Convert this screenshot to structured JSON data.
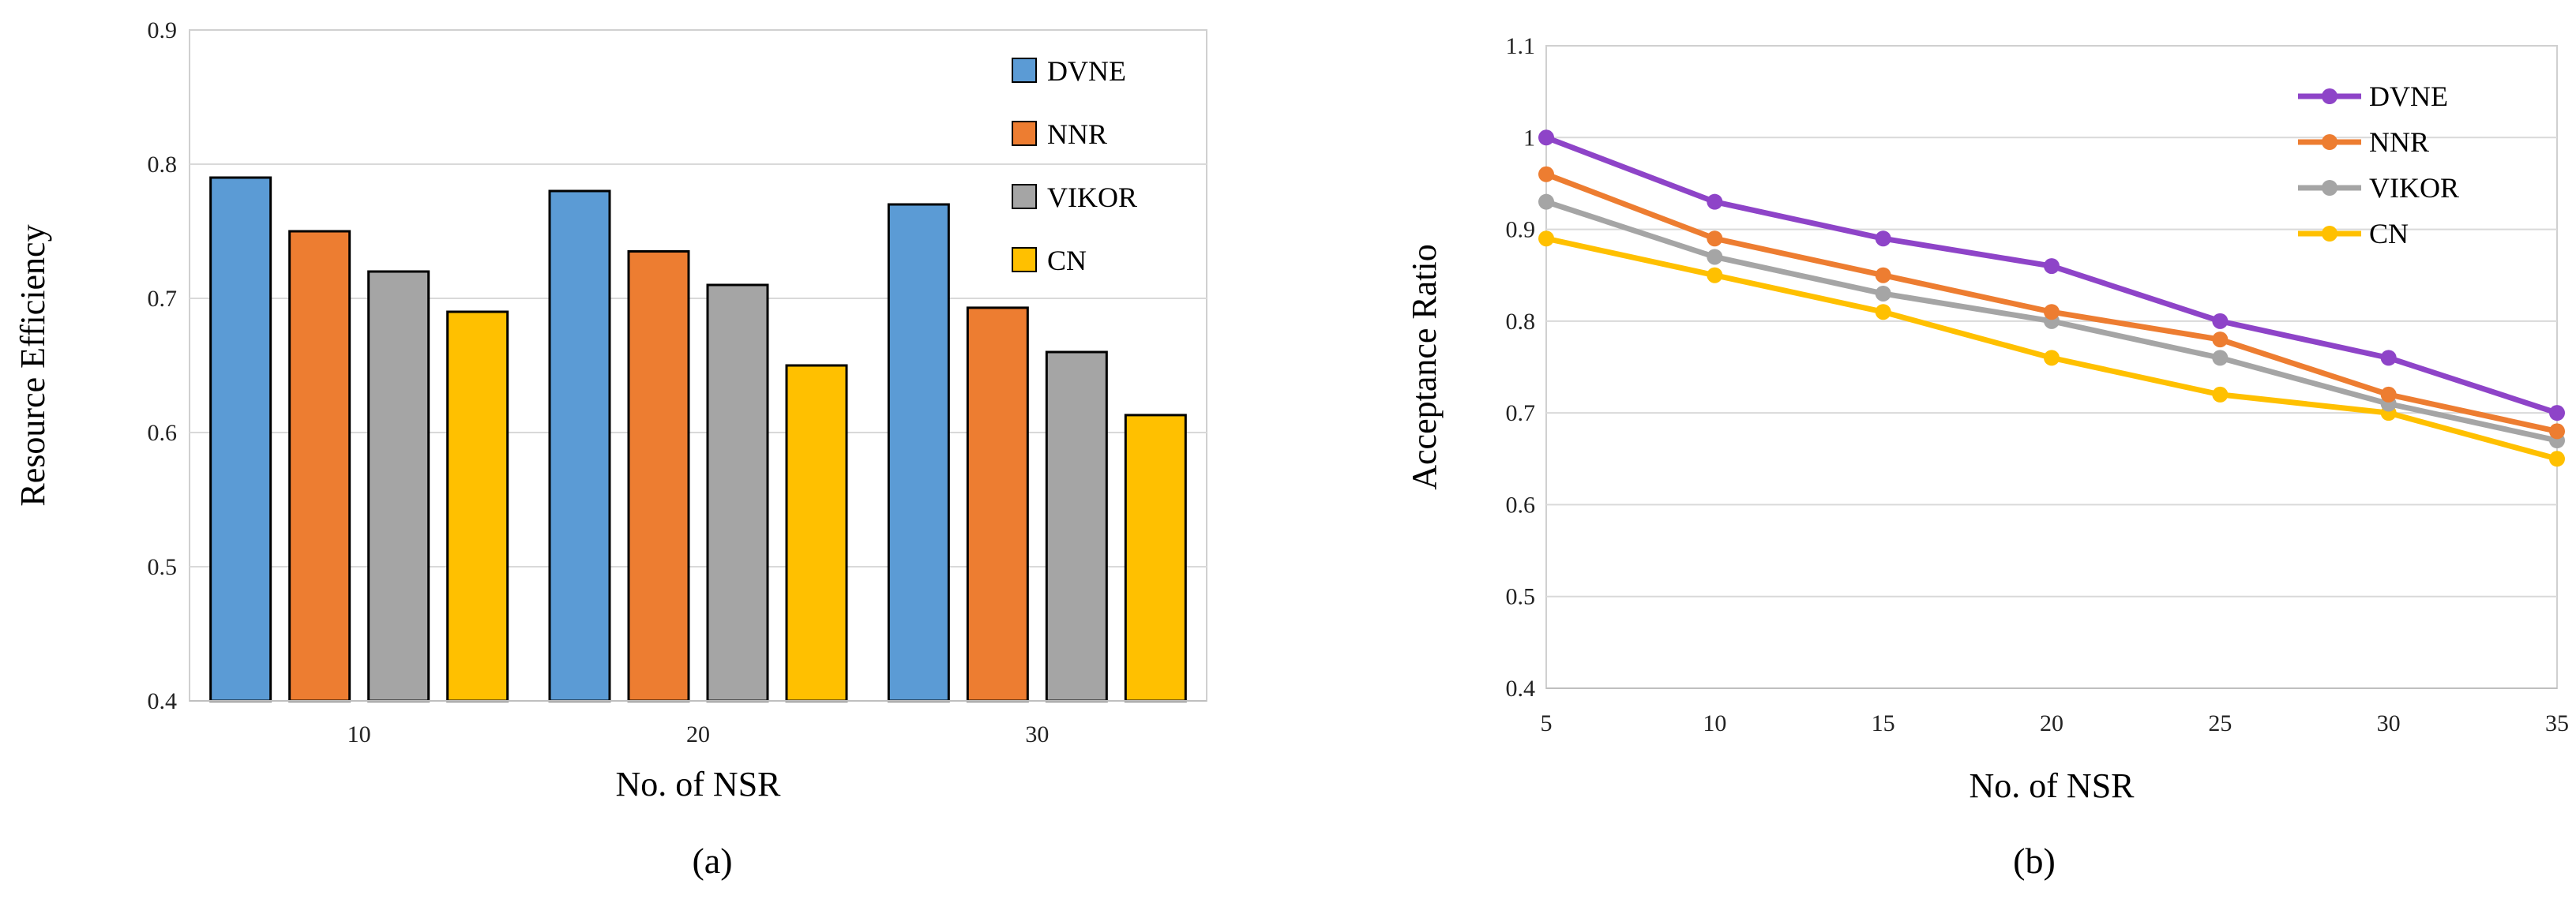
{
  "chart_data": [
    {
      "type": "bar",
      "panel_label": "(a)",
      "xlabel": "No. of NSR",
      "ylabel": "Resource Efficiency",
      "categories": [
        "10",
        "20",
        "30"
      ],
      "ylim": [
        0.4,
        0.9
      ],
      "yticks": [
        "0.4",
        "0.5",
        "0.6",
        "0.7",
        "0.8",
        "0.9"
      ],
      "grid": true,
      "legend_position": "top-right",
      "series": [
        {
          "name": "DVNE",
          "color": "#5b9bd5",
          "values": [
            0.79,
            0.78,
            0.77
          ]
        },
        {
          "name": "NNR",
          "color": "#ed7d31",
          "values": [
            0.75,
            0.735,
            0.693
          ]
        },
        {
          "name": "VIKOR",
          "color": "#a5a5a5",
          "values": [
            0.72,
            0.71,
            0.66
          ]
        },
        {
          "name": "CN",
          "color": "#ffc000",
          "values": [
            0.69,
            0.65,
            0.613
          ]
        }
      ]
    },
    {
      "type": "line",
      "panel_label": "(b)",
      "xlabel": "No. of NSR",
      "ylabel": "Acceptance Ratio",
      "x": [
        5,
        10,
        15,
        20,
        25,
        30,
        35
      ],
      "xticks": [
        "5",
        "10",
        "15",
        "20",
        "25",
        "30",
        "35"
      ],
      "ylim": [
        0.4,
        1.1
      ],
      "yticks": [
        "0.4",
        "0.5",
        "0.6",
        "0.7",
        "0.8",
        "0.9",
        "1",
        "1.1"
      ],
      "grid": true,
      "legend_position": "top-right",
      "series": [
        {
          "name": "DVNE",
          "color": "#8e44c8",
          "values": [
            1.0,
            0.93,
            0.89,
            0.86,
            0.8,
            0.76,
            0.7
          ]
        },
        {
          "name": "NNR",
          "color": "#ed7d31",
          "values": [
            0.96,
            0.89,
            0.85,
            0.81,
            0.78,
            0.72,
            0.68
          ]
        },
        {
          "name": "VIKOR",
          "color": "#a5a5a5",
          "values": [
            0.93,
            0.87,
            0.83,
            0.8,
            0.76,
            0.71,
            0.67
          ]
        },
        {
          "name": "CN",
          "color": "#ffc000",
          "values": [
            0.89,
            0.85,
            0.81,
            0.76,
            0.72,
            0.7,
            0.65
          ]
        }
      ]
    }
  ]
}
